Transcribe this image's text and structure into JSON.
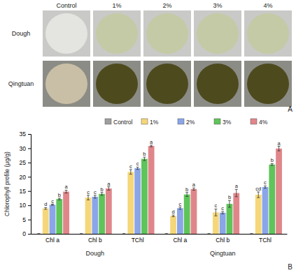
{
  "photos": {
    "label": "A",
    "columns": [
      "Control",
      "1%",
      "2%",
      "3%",
      "4%"
    ],
    "rows": [
      "Dough",
      "Qingtuan"
    ]
  },
  "chart_data": {
    "type": "bar",
    "annotations": [
      "B"
    ],
    "y_label": "Chlorophyll profile (μg/g)",
    "categories": [
      "Chl a",
      "Chl b",
      "TChl",
      "Chl a",
      "Chl b",
      "TChl"
    ],
    "groups": [
      "Dough",
      "Qingtuan"
    ],
    "ylim": [
      0,
      35
    ],
    "yticks": [
      0,
      5,
      10,
      15,
      20,
      25,
      30,
      35
    ],
    "legend": "top",
    "series": [
      {
        "name": "Control",
        "color": "#9e9e9e",
        "values": [
          0,
          0,
          0,
          0,
          0,
          0
        ],
        "errors": [
          0,
          0,
          0,
          0,
          0,
          0
        ]
      },
      {
        "name": "1%",
        "color": "#f5d77a",
        "values": [
          8.9,
          12.7,
          21.7,
          6.3,
          7.5,
          13.7
        ],
        "errors": [
          0.3,
          0.8,
          0.8,
          0.3,
          1.2,
          1.0
        ],
        "letters": [
          "d",
          "c",
          "c",
          "d",
          "c",
          "cd"
        ]
      },
      {
        "name": "2%",
        "color": "#8aa6e8",
        "values": [
          10.2,
          13.0,
          23.0,
          9.0,
          7.4,
          16.4
        ],
        "errors": [
          0.2,
          0.5,
          0.4,
          0.4,
          0.4,
          0.4
        ],
        "letters": [
          "c",
          "c",
          "c",
          "c",
          "c",
          "c"
        ]
      },
      {
        "name": "3%",
        "color": "#5fc45a",
        "values": [
          12.2,
          14.0,
          26.3,
          13.8,
          10.5,
          24.3
        ],
        "errors": [
          0.3,
          0.5,
          0.6,
          0.7,
          1.2,
          0.3
        ],
        "letters": [
          "b",
          "b",
          "b",
          "b",
          "b",
          "b"
        ]
      },
      {
        "name": "4%",
        "color": "#e0868a",
        "values": [
          14.8,
          15.9,
          30.8,
          15.7,
          14.3,
          29.9
        ],
        "errors": [
          0.5,
          0.6,
          0.3,
          0.4,
          1.3,
          0.8
        ],
        "letters": [
          "a",
          "a",
          "a",
          "a",
          "a",
          "a"
        ]
      }
    ]
  }
}
